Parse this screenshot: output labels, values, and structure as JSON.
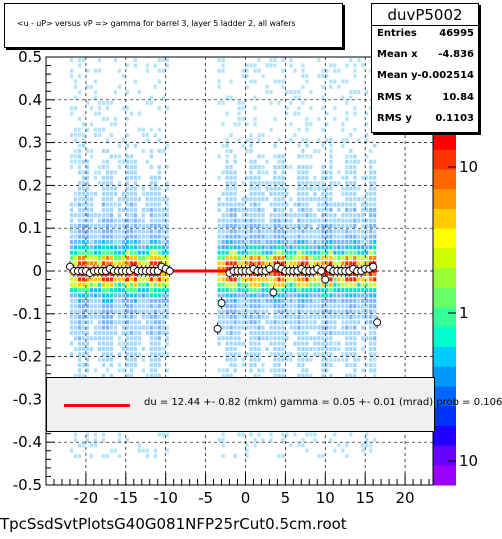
{
  "title": "<u - uP>     versus   vP =>  gamma for barrel 3, layer 5 ladder 2, all wafers",
  "stats": {
    "name": "duvP5002",
    "rows": [
      {
        "label": "Entries",
        "value": "46995"
      },
      {
        "label": "Mean x",
        "value": "-4.836"
      },
      {
        "label": "Mean y",
        "value": "-0.002514"
      },
      {
        "label": "RMS x",
        "value": "10.84"
      },
      {
        "label": "RMS y",
        "value": "0.1103"
      }
    ]
  },
  "fit_text": "du =   12.44 +-  0.82 (mkm) gamma =    0.05 +-  0.01 (mrad) prob = 0.106",
  "footer": "TpcSsdSvtPlotsG40G081NFP25rCut0.5cm.root",
  "chart_data": {
    "type": "heatmap",
    "xlim": [
      -25,
      23.5
    ],
    "ylim": [
      -0.5,
      0.5
    ],
    "x_ticks": [
      -20,
      -15,
      -10,
      -5,
      0,
      5,
      10,
      15,
      20
    ],
    "y_ticks": [
      -0.5,
      -0.4,
      -0.3,
      -0.2,
      -0.1,
      0,
      0.1,
      0.2,
      0.3,
      0.4,
      0.5
    ],
    "color_scale": {
      "type": "log",
      "tick_labels": [
        "10",
        "1",
        "10"
      ]
    },
    "occupied_x_ranges": [
      [
        -22,
        -9.5
      ],
      [
        -3.5,
        16.5
      ]
    ],
    "fit_line": {
      "x_range": [
        -22,
        16.5
      ],
      "y": 0.0,
      "color": "#ff0000"
    },
    "profile_points": [
      {
        "x": -22,
        "y": 0.01
      },
      {
        "x": -21.5,
        "y": 0.0
      },
      {
        "x": -21,
        "y": 0.0
      },
      {
        "x": -20.5,
        "y": 0.0
      },
      {
        "x": -20,
        "y": 0.0
      },
      {
        "x": -19.5,
        "y": -0.005
      },
      {
        "x": -19,
        "y": 0.0
      },
      {
        "x": -18.5,
        "y": 0.0
      },
      {
        "x": -18,
        "y": 0.0
      },
      {
        "x": -17.5,
        "y": 0.0
      },
      {
        "x": -17,
        "y": 0.005
      },
      {
        "x": -16.5,
        "y": 0.0
      },
      {
        "x": -16,
        "y": 0.0
      },
      {
        "x": -15.5,
        "y": 0.0
      },
      {
        "x": -15,
        "y": 0.0
      },
      {
        "x": -14.5,
        "y": 0.0
      },
      {
        "x": -14,
        "y": 0.005
      },
      {
        "x": -13.5,
        "y": 0.0
      },
      {
        "x": -13,
        "y": 0.0
      },
      {
        "x": -12.5,
        "y": 0.0
      },
      {
        "x": -12,
        "y": 0.0
      },
      {
        "x": -11.5,
        "y": 0.0
      },
      {
        "x": -11,
        "y": 0.0
      },
      {
        "x": -10.5,
        "y": 0.01
      },
      {
        "x": -10,
        "y": 0.005
      },
      {
        "x": -9.5,
        "y": 0.0
      },
      {
        "x": -3.5,
        "y": -0.135
      },
      {
        "x": -3,
        "y": -0.075
      },
      {
        "x": -2,
        "y": -0.005
      },
      {
        "x": -1.5,
        "y": 0.0
      },
      {
        "x": -1,
        "y": 0.0
      },
      {
        "x": -0.5,
        "y": 0.0
      },
      {
        "x": 0,
        "y": 0.0
      },
      {
        "x": 0.5,
        "y": 0.0
      },
      {
        "x": 1,
        "y": 0.005
      },
      {
        "x": 1.5,
        "y": 0.0
      },
      {
        "x": 2,
        "y": 0.0
      },
      {
        "x": 2.5,
        "y": 0.0
      },
      {
        "x": 3,
        "y": 0.005
      },
      {
        "x": 3.5,
        "y": -0.05
      },
      {
        "x": 4,
        "y": 0.01
      },
      {
        "x": 4.5,
        "y": 0.005
      },
      {
        "x": 5,
        "y": 0.0
      },
      {
        "x": 5.5,
        "y": 0.0
      },
      {
        "x": 6,
        "y": 0.0
      },
      {
        "x": 6.5,
        "y": 0.0
      },
      {
        "x": 7,
        "y": 0.005
      },
      {
        "x": 7.5,
        "y": 0.0
      },
      {
        "x": 8,
        "y": 0.0
      },
      {
        "x": 8.5,
        "y": 0.0
      },
      {
        "x": 9,
        "y": 0.005
      },
      {
        "x": 9.5,
        "y": 0.0
      },
      {
        "x": 10,
        "y": -0.02
      },
      {
        "x": 10.5,
        "y": 0.005
      },
      {
        "x": 11,
        "y": 0.0
      },
      {
        "x": 11.5,
        "y": 0.0
      },
      {
        "x": 12,
        "y": 0.0
      },
      {
        "x": 12.5,
        "y": 0.0
      },
      {
        "x": 13,
        "y": 0.0
      },
      {
        "x": 13.5,
        "y": 0.005
      },
      {
        "x": 14,
        "y": 0.0
      },
      {
        "x": 14.5,
        "y": 0.0
      },
      {
        "x": 15,
        "y": 0.005
      },
      {
        "x": 15.5,
        "y": 0.005
      },
      {
        "x": 16,
        "y": 0.01
      },
      {
        "x": 16.5,
        "y": -0.12
      }
    ]
  }
}
